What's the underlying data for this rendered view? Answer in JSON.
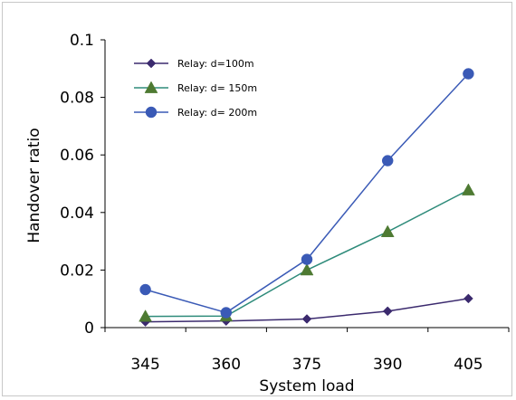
{
  "chart_data": {
    "type": "line",
    "title": "",
    "xlabel": "System load",
    "ylabel": "Handover ratio",
    "categories": [
      "345",
      "360",
      "375",
      "390",
      "405"
    ],
    "ylim": [
      0,
      0.1
    ],
    "yticks": [
      0,
      0.02,
      0.04,
      0.06,
      0.08,
      0.1
    ],
    "ytick_labels": [
      "0",
      "0.02",
      "0.04",
      "0.06",
      "0.08",
      "0.1"
    ],
    "grid": false,
    "legend_position": "top-left",
    "series": [
      {
        "name": "Relay: d=100m",
        "marker": "diamond",
        "color": "#3b2a6e",
        "values": [
          0.002,
          0.0023,
          0.003,
          0.0057,
          0.0101
        ]
      },
      {
        "name": "Relay: d= 150m",
        "marker": "triangle",
        "color": "#2e8b7a",
        "marker_color": "#4e7a32",
        "values": [
          0.0039,
          0.004,
          0.02,
          0.0333,
          0.0478
        ]
      },
      {
        "name": "Relay: d= 200m",
        "marker": "circle",
        "color": "#3a5ab6",
        "values": [
          0.0132,
          0.0052,
          0.0237,
          0.058,
          0.0882
        ]
      }
    ]
  }
}
